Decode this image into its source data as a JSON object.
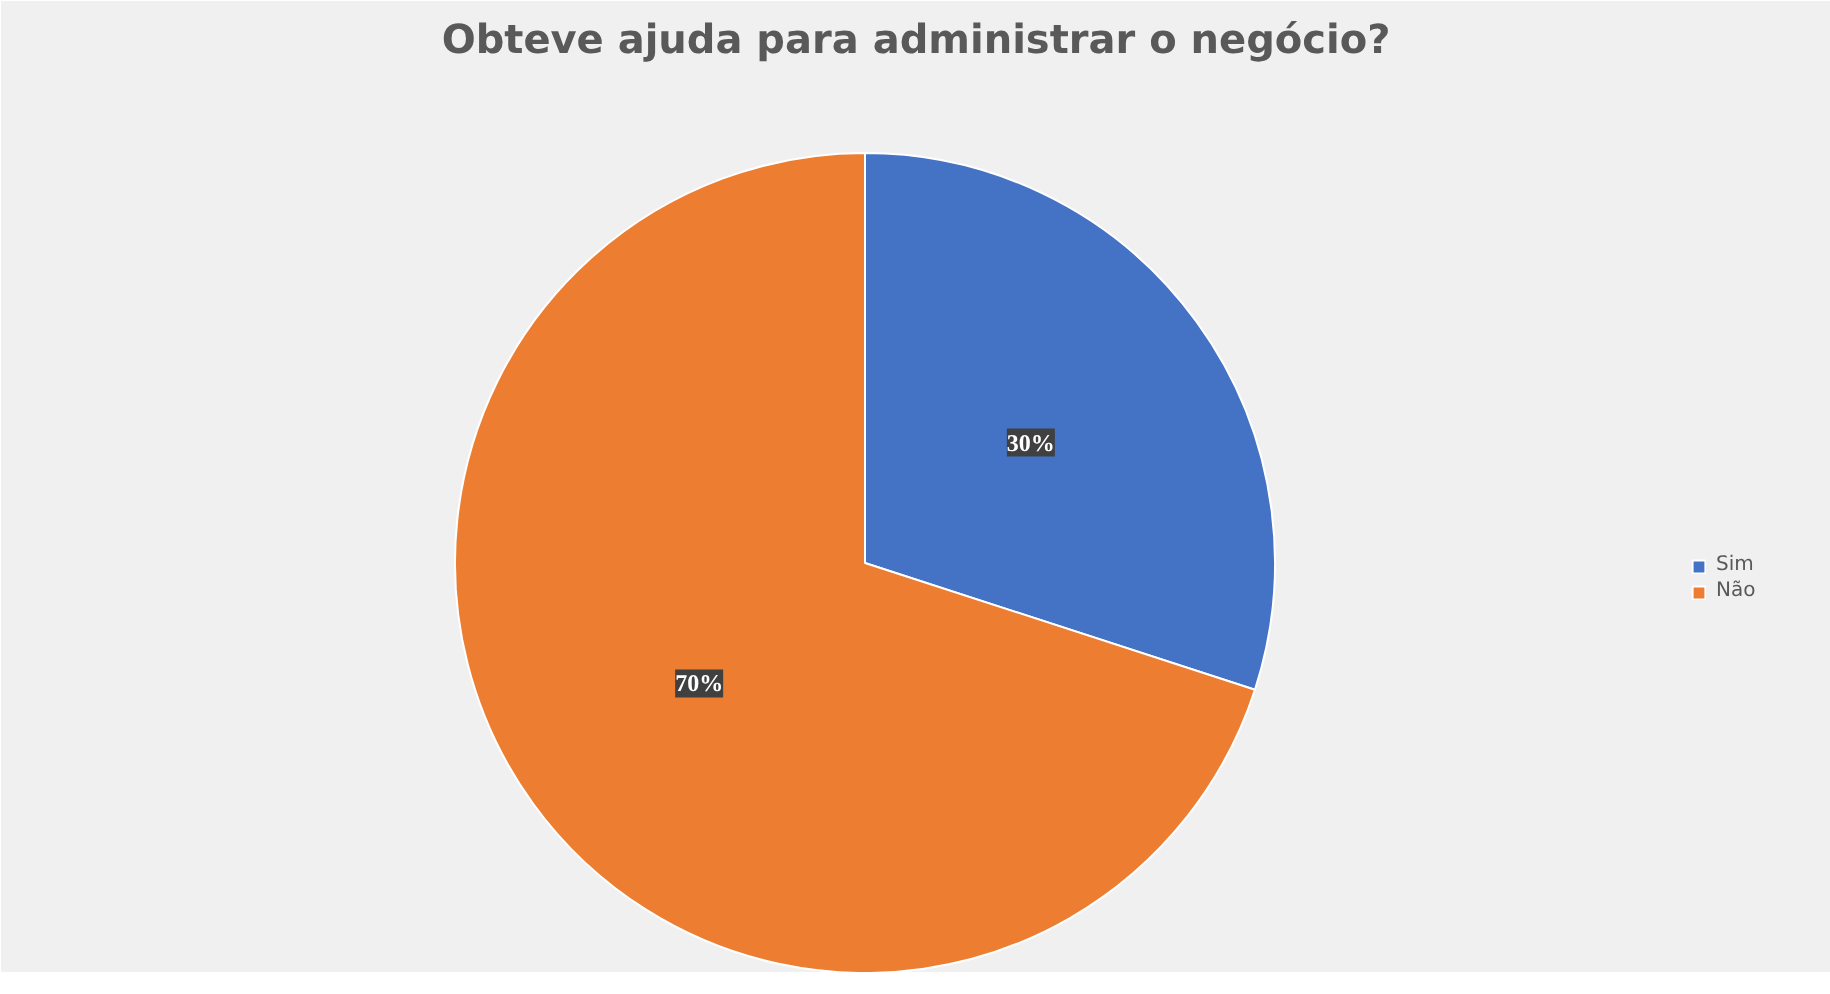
{
  "chart_data": {
    "type": "pie",
    "title": "Obteve ajuda para administrar o negócio?",
    "categories": [
      "Sim",
      "Não"
    ],
    "values": [
      30,
      70
    ],
    "colors": [
      "#4472c4",
      "#ed7d31"
    ],
    "value_labels": [
      "30%",
      "70%"
    ],
    "legend": "right"
  }
}
